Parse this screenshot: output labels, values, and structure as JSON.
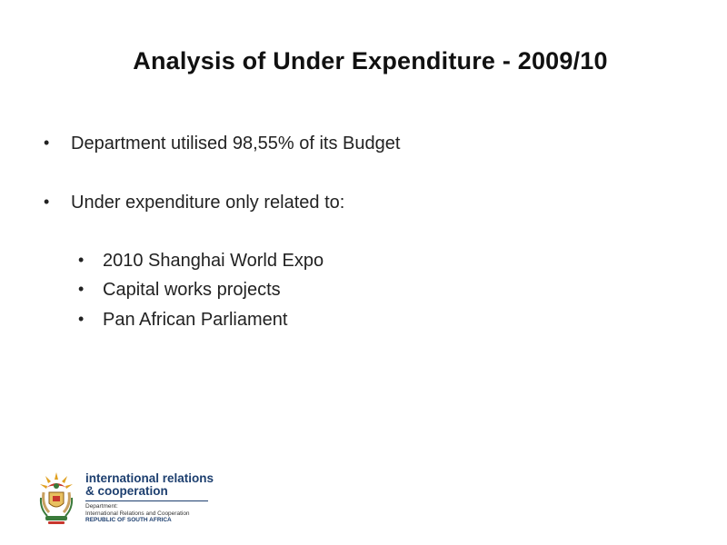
{
  "slide": {
    "title": "Analysis of Under Expenditure - 2009/10",
    "bullets": [
      {
        "text": "Department utilised 98,55% of its Budget",
        "level": 1
      },
      {
        "text": "Under  expenditure only related to:",
        "level": 1
      }
    ],
    "sub_bullets": [
      {
        "text": "2010 Shanghai World Expo",
        "level": 2
      },
      {
        "text": "Capital works projects",
        "level": 2
      },
      {
        "text": "Pan African Parliament",
        "level": 2
      }
    ],
    "bullet_glyph": "•"
  },
  "logo": {
    "line1": "international relations",
    "line2": "& cooperation",
    "small1": "Department:",
    "small2": "International Relations and Cooperation",
    "small3": "REPUBLIC OF SOUTH AFRICA",
    "crest_icon": "coat-of-arms-icon",
    "colors": {
      "text": "#1d3f6f",
      "crest_gold": "#e0a020",
      "crest_red": "#c8372d",
      "crest_green": "#3a7a3a"
    }
  }
}
